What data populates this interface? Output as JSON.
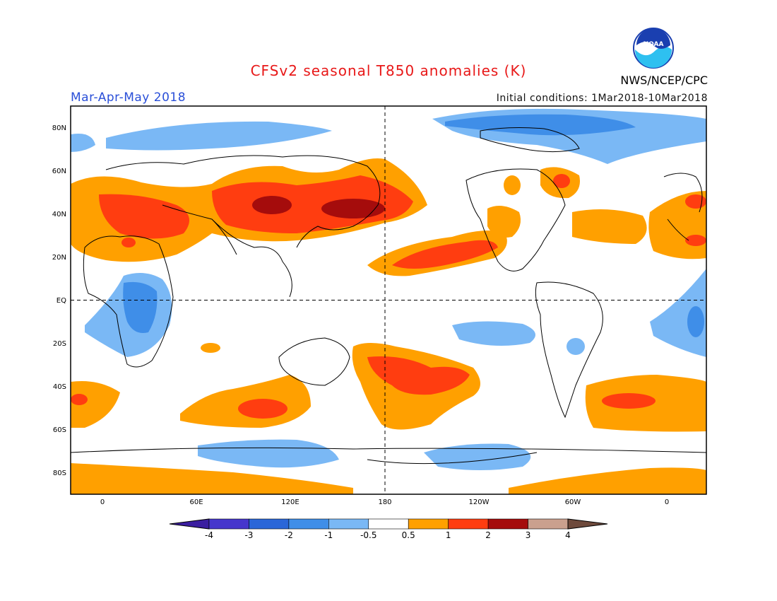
{
  "title": "CFSv2 seasonal T850 anomalies (K)",
  "agency": "NWS/NCEP/CPC",
  "season": "Mar-Apr-May 2018",
  "initial_conditions": "Initial conditions: 1Mar2018-10Mar2018",
  "logo_text": "NOAA",
  "map": {
    "lat_labels": [
      "80N",
      "60N",
      "40N",
      "20N",
      "EQ",
      "20S",
      "40S",
      "60S",
      "80S"
    ],
    "lon_labels": [
      "0",
      "60E",
      "120E",
      "180",
      "120W",
      "60W",
      "0"
    ]
  },
  "colorbar": {
    "labels": [
      "-4",
      "-3",
      "-2",
      "-1",
      "-0.5",
      "0.5",
      "1",
      "2",
      "3",
      "4"
    ],
    "colors": [
      "#3b1ea0",
      "#4636cc",
      "#2a66d8",
      "#3f8ee8",
      "#7ab8f5",
      "#ffffff",
      "#ffa000",
      "#ff3d10",
      "#a50c0c",
      "#caa08e",
      "#6e4a3c"
    ],
    "units": "K"
  },
  "colors": {
    "orange": "#ffa000",
    "red": "#ff3d10",
    "dark_red": "#a50c0c",
    "light_blue": "#7ab8f5",
    "blue": "#3f8ee8",
    "title_red": "#e81818",
    "season_blue": "#2a4fd8"
  }
}
